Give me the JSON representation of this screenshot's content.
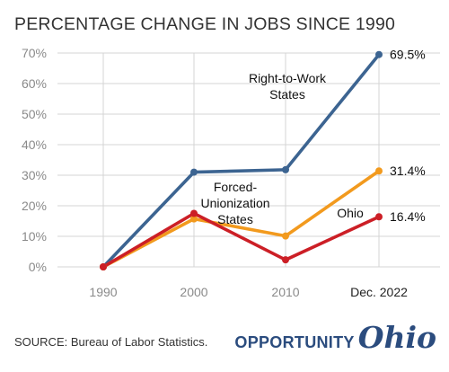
{
  "title": "PERCENTAGE CHANGE IN JOBS SINCE 1990",
  "source": "SOURCE: Bureau of Labor Statistics.",
  "brand": {
    "word": "OPPORTUNITY",
    "script": "Ohio",
    "color": "#2b4c7e"
  },
  "chart_data": {
    "type": "line",
    "title": "PERCENTAGE CHANGE IN JOBS SINCE 1990",
    "xlabel": "",
    "ylabel": "",
    "categories": [
      "1990",
      "2000",
      "2010",
      "Dec. 2022"
    ],
    "ylim": [
      0,
      70
    ],
    "yticks": [
      "0%",
      "10%",
      "20%",
      "30%",
      "40%",
      "50%",
      "60%",
      "70%"
    ],
    "grid": true,
    "series": [
      {
        "name": "Right-to-Work States",
        "label_lines": [
          "Right-to-Work",
          "States"
        ],
        "color": "#3c6491",
        "values": [
          0,
          31,
          31.8,
          69.5
        ],
        "end_label": "69.5%"
      },
      {
        "name": "Forced-Unionization States",
        "label_lines": [
          "Forced-",
          "Unionization",
          "States"
        ],
        "color": "#f29a1e",
        "values": [
          0,
          15.7,
          10.1,
          31.4
        ],
        "end_label": "31.4%"
      },
      {
        "name": "Ohio",
        "label_lines": [
          "Ohio"
        ],
        "color": "#cc1f26",
        "values": [
          0,
          17.5,
          2.3,
          16.4
        ],
        "end_label": "16.4%"
      }
    ]
  }
}
